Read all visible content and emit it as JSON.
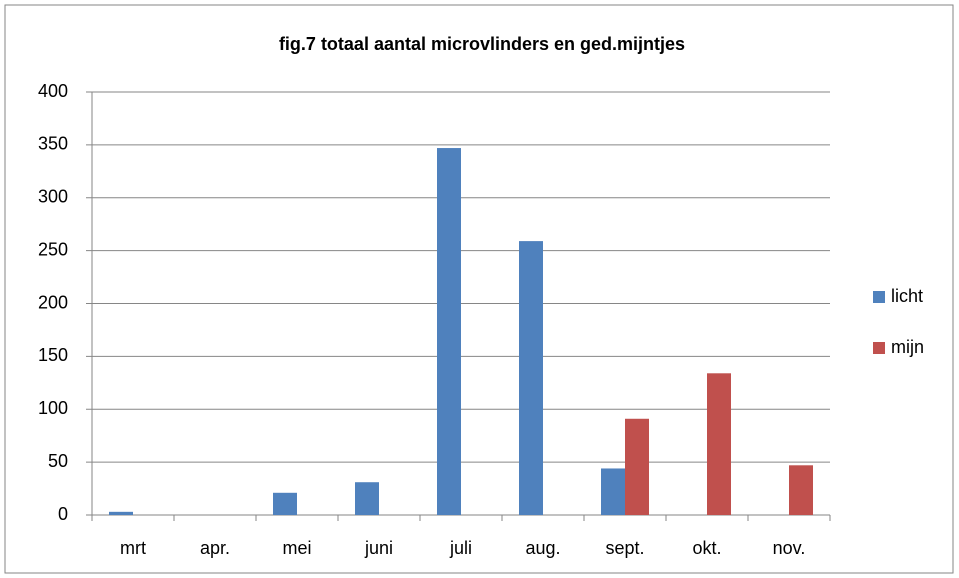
{
  "chart_data": {
    "type": "bar",
    "title": "fig.7 totaal aantal microvlinders en ged.mijntjes",
    "categories": [
      "mrt",
      "apr.",
      "mei",
      "juni",
      "juli",
      "aug.",
      "sept.",
      "okt.",
      "nov."
    ],
    "series": [
      {
        "name": "licht",
        "color": "#4f81bd",
        "values": [
          3,
          0,
          21,
          31,
          347,
          259,
          44,
          0,
          0
        ]
      },
      {
        "name": "mijn",
        "color": "#c0504d",
        "values": [
          0,
          0,
          0,
          0,
          0,
          0,
          91,
          134,
          47
        ]
      }
    ],
    "ylim": [
      0,
      400
    ],
    "yticks": [
      0,
      50,
      100,
      150,
      200,
      250,
      300,
      350,
      400
    ],
    "grid": true,
    "legend": "right"
  }
}
